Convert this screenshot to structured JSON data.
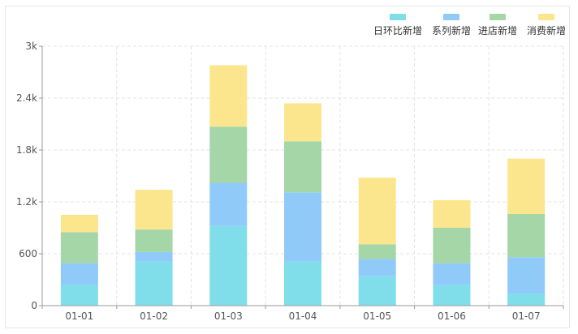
{
  "chart_data": {
    "type": "bar",
    "stacked": true,
    "title": "",
    "xlabel": "",
    "ylabel": "",
    "categories": [
      "01-01",
      "01-02",
      "01-03",
      "01-04",
      "01-05",
      "01-06",
      "01-07"
    ],
    "y_ticks": [
      "0",
      "600",
      "1.2k",
      "1.8k",
      "2.4k",
      "3k"
    ],
    "ylim": [
      0,
      3000
    ],
    "grid": true,
    "legend_position": "top-right",
    "series": [
      {
        "name": "日环比新增",
        "color": "#80deea",
        "values": [
          240,
          510,
          920,
          510,
          340,
          240,
          140
        ]
      },
      {
        "name": "系列新增",
        "color": "#90caf9",
        "values": [
          250,
          110,
          500,
          800,
          200,
          250,
          420
        ]
      },
      {
        "name": "进店新增",
        "color": "#a5d6a7",
        "values": [
          360,
          260,
          650,
          590,
          170,
          410,
          500
        ]
      },
      {
        "name": "消费新增",
        "color": "#fce68d",
        "values": [
          200,
          460,
          710,
          440,
          770,
          320,
          640
        ]
      }
    ]
  }
}
